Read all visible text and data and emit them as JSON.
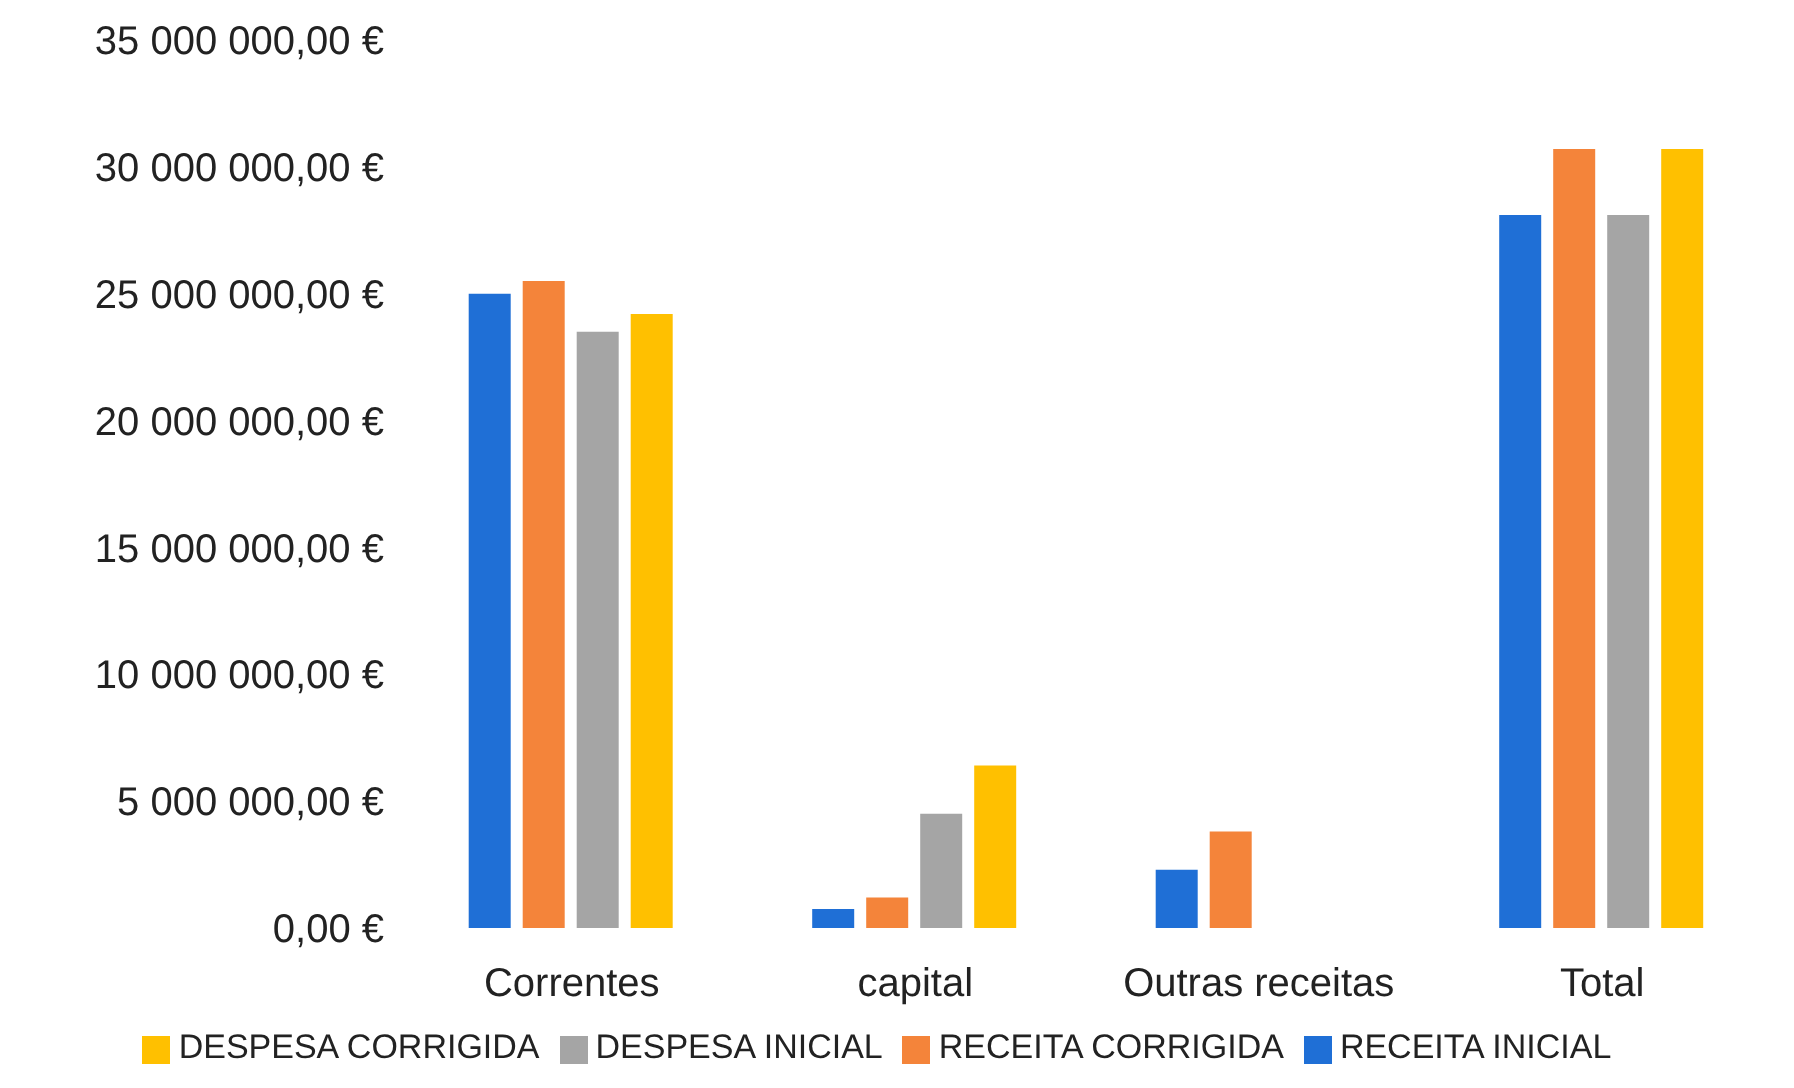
{
  "chart_data": {
    "type": "bar",
    "categories": [
      "Correntes",
      "capital",
      "Outras receitas",
      "Total"
    ],
    "series": [
      {
        "name": "RECEITA INICIAL",
        "color": "#1f6fd6",
        "values": [
          25000000,
          750000,
          2300000,
          28100000
        ]
      },
      {
        "name": "RECEITA CORRIGIDA",
        "color": "#f4843a",
        "values": [
          25500000,
          1200000,
          3800000,
          30700000
        ]
      },
      {
        "name": "DESPESA INICIAL",
        "color": "#a5a5a5",
        "values": [
          23500000,
          4500000,
          null,
          28100000
        ]
      },
      {
        "name": "DESPESA CORRIGIDA",
        "color": "#ffc000",
        "values": [
          24200000,
          6400000,
          null,
          30700000
        ]
      }
    ],
    "ylim": [
      0,
      35000000
    ],
    "yticks": [
      {
        "value": 0,
        "label": "0,00 €"
      },
      {
        "value": 5000000,
        "label": "5 000 000,00 €"
      },
      {
        "value": 10000000,
        "label": "10 000 000,00 €"
      },
      {
        "value": 15000000,
        "label": "15 000 000,00 €"
      },
      {
        "value": 20000000,
        "label": "20 000 000,00 €"
      },
      {
        "value": 25000000,
        "label": "25 000 000,00 €"
      },
      {
        "value": 30000000,
        "label": "30 000 000,00 €"
      },
      {
        "value": 35000000,
        "label": "35 000 000,00 €"
      }
    ],
    "grid": false,
    "legend": "bottom"
  }
}
